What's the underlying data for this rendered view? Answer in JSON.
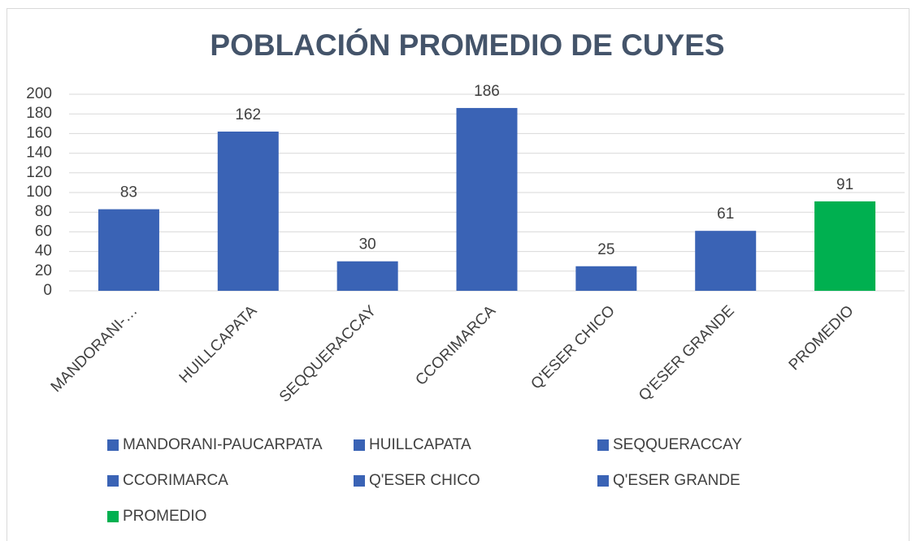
{
  "chart_data": {
    "type": "bar",
    "title": "POBLACIÓN PROMEDIO DE CUYES",
    "categories": [
      "MANDORANI-…",
      "HUILLCAPATA",
      "SEQQUERACCAY",
      "CCORIMARCA",
      "Q'ESER CHICO",
      "Q'ESER GRANDE",
      "PROMEDIO"
    ],
    "values": [
      83,
      162,
      30,
      186,
      25,
      61,
      91
    ],
    "colors": [
      "#3a63b5",
      "#3a63b5",
      "#3a63b5",
      "#3a63b5",
      "#3a63b5",
      "#3a63b5",
      "#00b050"
    ],
    "legend": [
      "MANDORANI-PAUCARPATA",
      "HUILLCAPATA",
      "SEQQUERACCAY",
      "CCORIMARCA",
      "Q'ESER CHICO",
      "Q'ESER GRANDE",
      "PROMEDIO"
    ],
    "ylim": [
      0,
      200
    ],
    "yticks": [
      0,
      20,
      40,
      60,
      80,
      100,
      120,
      140,
      160,
      180,
      200
    ],
    "grid": true
  }
}
